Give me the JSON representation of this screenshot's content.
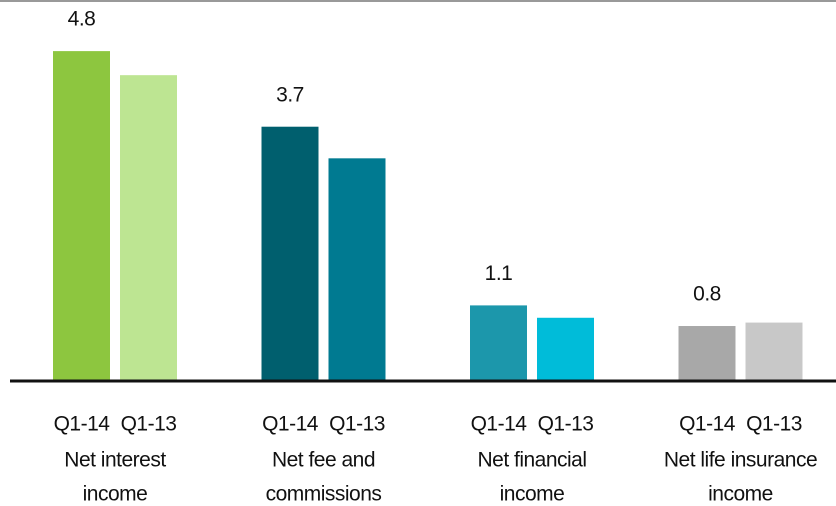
{
  "chart_data": {
    "type": "bar",
    "categories": [
      [
        "Net interest",
        "income"
      ],
      [
        "Net fee and",
        "commissions"
      ],
      [
        "Net financial",
        "income"
      ],
      [
        "Net life insurance",
        "income"
      ]
    ],
    "series": [
      {
        "name": "Q1-14",
        "colors": [
          "#8dc63f",
          "#005f6e",
          "#1c97ab",
          "#a8a8a8"
        ],
        "values": [
          4.8,
          3.7,
          1.1,
          0.8
        ],
        "show_labels": true
      },
      {
        "name": "Q1-13",
        "colors": [
          "#bde592",
          "#007a91",
          "#00bcd9",
          "#c8c8c8"
        ],
        "values": [
          4.45,
          3.24,
          0.92,
          0.85
        ],
        "show_labels": false
      }
    ],
    "ylim": [
      0,
      5.5
    ]
  }
}
